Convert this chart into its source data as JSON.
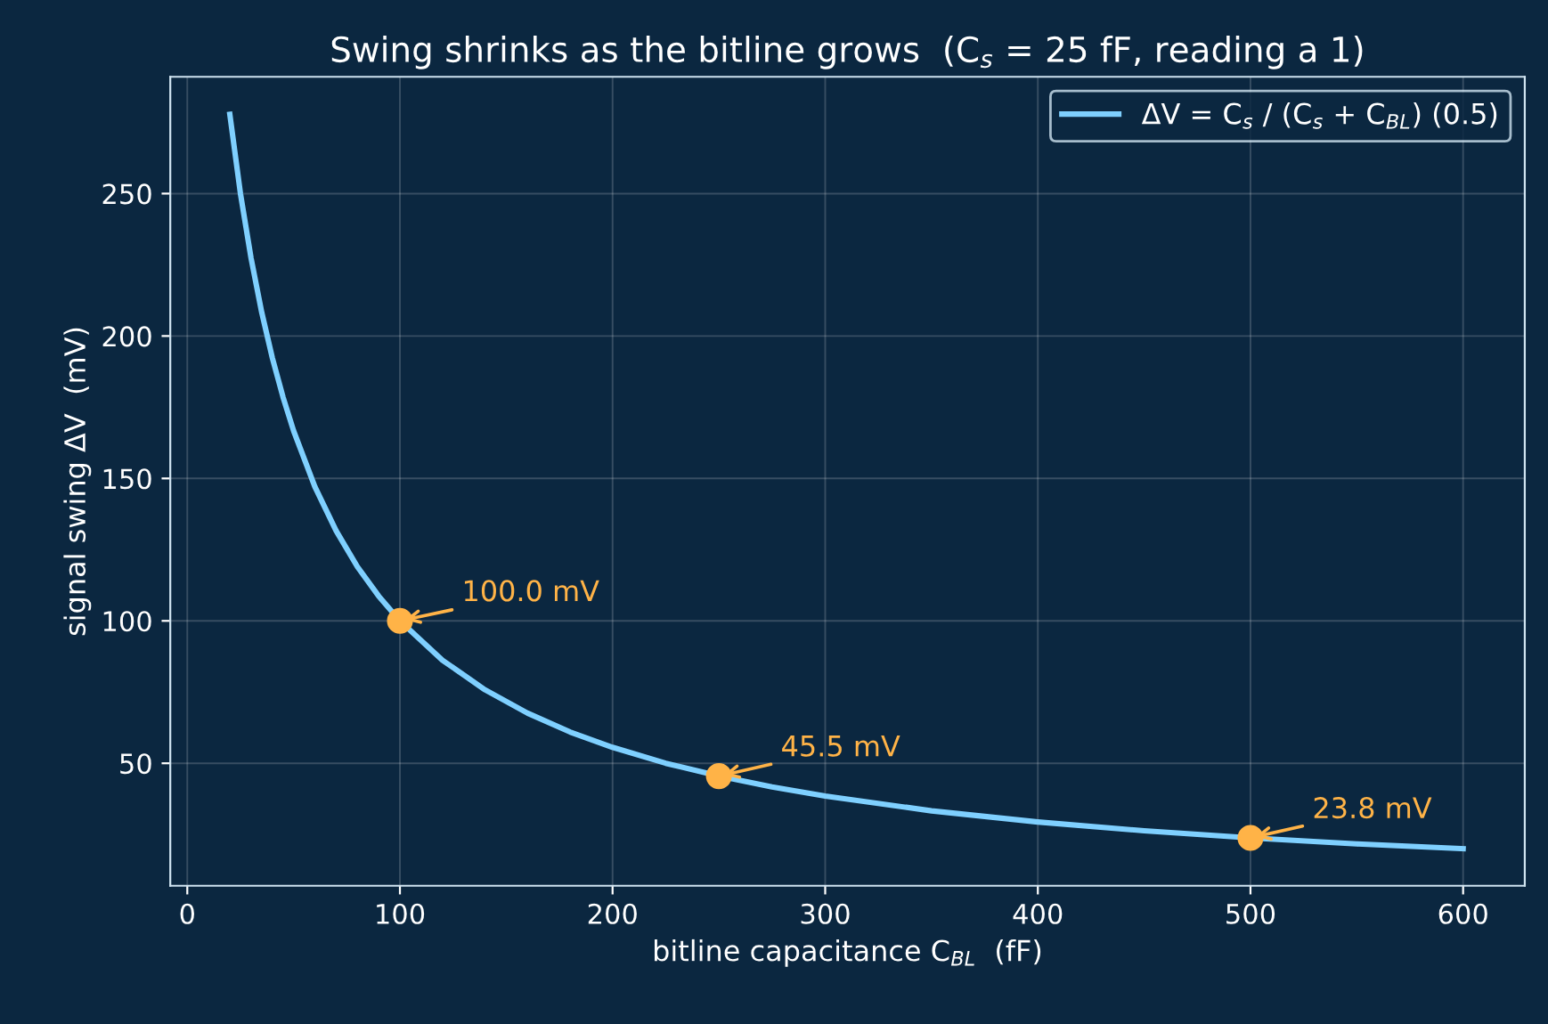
{
  "chart_data": {
    "type": "line",
    "title": "Swing shrinks as the bitline grows  (C$_{s}$ = 25 fF, reading a 1)",
    "xlabel": "bitline capacitance C$_{BL}$  (fF)",
    "ylabel": "signal swing ΔV  (mV)",
    "series": [
      {
        "name": "ΔV = C$_{s}$ / (C$_{s}$ + C$_{BL}$) (0.5)",
        "color": "#7fd0ff",
        "x": [
          20,
          25,
          30,
          35,
          40,
          45,
          50,
          60,
          70,
          80,
          90,
          100,
          120,
          140,
          160,
          180,
          200,
          225,
          250,
          275,
          300,
          350,
          400,
          450,
          500,
          550,
          600
        ],
        "values": [
          277.8,
          250.0,
          227.3,
          208.3,
          192.3,
          178.6,
          166.7,
          147.1,
          131.6,
          119.0,
          108.7,
          100.0,
          86.2,
          75.8,
          67.6,
          61.0,
          55.6,
          50.0,
          45.5,
          41.7,
          38.5,
          33.3,
          29.4,
          26.3,
          23.8,
          21.7,
          20.0
        ]
      },
      {
        "type": "scatter",
        "color": "#ffb347",
        "x": [
          100,
          250,
          500
        ],
        "values": [
          100.0,
          45.5,
          23.8
        ]
      }
    ],
    "annotations": [
      {
        "text": "100.0 mV",
        "x": 100,
        "y": 100.0
      },
      {
        "text": "45.5 mV",
        "x": 250,
        "y": 45.5
      },
      {
        "text": "23.8 mV",
        "x": 500,
        "y": 23.8
      }
    ],
    "xlim": [
      -8,
      629
    ],
    "ylim": [
      7,
      291
    ],
    "xticks": [
      0,
      100,
      200,
      300,
      400,
      500,
      600
    ],
    "yticks": [
      50,
      100,
      150,
      200,
      250
    ],
    "grid": true,
    "legend": "top right",
    "line_style": "solid"
  }
}
